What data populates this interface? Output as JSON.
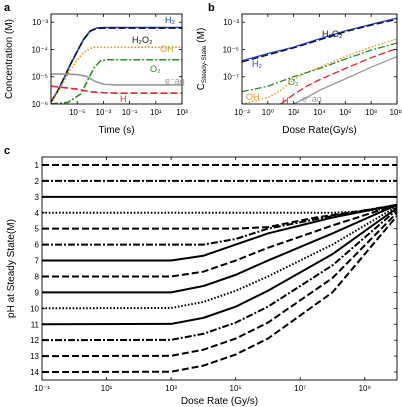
{
  "chart_data": [
    {
      "panel": "a",
      "type": "line",
      "xlabel": "Time (s)",
      "ylabel": "Concentration (M)",
      "xscale": "log",
      "yscale": "log",
      "xlim": [
        1e-07,
        1000
      ],
      "ylim": [
        1e-06,
        0.002
      ],
      "xticks": [
        1e-05,
        0.001,
        0.1,
        10,
        1000
      ],
      "xticklabels": [
        "10⁻⁵",
        "10⁻³",
        "10⁻¹",
        "10¹",
        "10³"
      ],
      "yticks": [
        1e-06,
        1e-05,
        0.0001,
        0.001
      ],
      "yticklabels": [
        "10⁻⁶",
        "10⁻⁵",
        "10⁻⁴",
        "10⁻³"
      ],
      "series": [
        {
          "name": "H₂",
          "color": "#1f3fd9",
          "dash": "solid",
          "x": [
            1e-07,
            3e-07,
            1e-06,
            3e-06,
            1e-05,
            3e-05,
            0.0001,
            0.0003,
            0.001,
            1000
          ],
          "y": [
            1.2e-06,
            2.8e-06,
            9e-06,
            2.8e-05,
            8.5e-05,
            0.00023,
            0.00048,
            0.00061,
            0.00064,
            0.00064
          ]
        },
        {
          "name": "H₂O₂",
          "color": "#111111",
          "dash": "dashed",
          "x": [
            1e-07,
            3e-07,
            1e-06,
            3e-06,
            1e-05,
            3e-05,
            0.0001,
            0.0003,
            0.001,
            1000
          ],
          "y": [
            1.2e-06,
            2.8e-06,
            9e-06,
            2.8e-05,
            8.5e-05,
            0.00023,
            0.00047,
            0.00059,
            0.00061,
            0.00061
          ]
        },
        {
          "name": "OH",
          "color": "#e39a1f",
          "dash": "dotted",
          "x": [
            1e-07,
            3e-07,
            1e-06,
            3e-06,
            1e-05,
            3e-05,
            0.0001,
            0.0002,
            1000
          ],
          "y": [
            1.1e-06,
            2.5e-06,
            7e-06,
            1.8e-05,
            4e-05,
            7.5e-05,
            0.00011,
            0.00012,
            0.00012
          ]
        },
        {
          "name": "O₂",
          "color": "#2e8b24",
          "dash": "dashdot",
          "x": [
            1e-07,
            2e-06,
            2e-05,
            6e-05,
            0.0002,
            0.0006,
            0.002,
            1000
          ],
          "y": [
            1e-06,
            1.15e-06,
            2.4e-06,
            7e-06,
            2.2e-05,
            3.8e-05,
            4.2e-05,
            4.2e-05
          ]
        },
        {
          "name": "e⁻aq",
          "color": "#999999",
          "dash": "solid",
          "x": [
            1e-07,
            1e-06,
            1e-05,
            5e-05,
            0.0002,
            0.001,
            0.01,
            1000
          ],
          "y": [
            1.25e-05,
            1.25e-05,
            1.2e-05,
            1.05e-05,
            7e-06,
            5.3e-06,
            5e-06,
            5e-06
          ]
        },
        {
          "name": "H",
          "color": "#e0242b",
          "dash": "dashed",
          "x": [
            1e-07,
            1e-06,
            1e-05,
            0.0001,
            0.001,
            0.01,
            1000
          ],
          "y": [
            4.5e-06,
            4e-06,
            3.5e-06,
            2.8e-06,
            2.6e-06,
            2.5e-06,
            2.5e-06
          ]
        }
      ]
    },
    {
      "panel": "b",
      "type": "line",
      "xlabel": "Dose Rate(Gy/s)",
      "ylabel": "C",
      "ylabel_sub": "Steady-State",
      "ylabel_unit": "(M)",
      "xscale": "log",
      "yscale": "log",
      "xlim": [
        0.01,
        10000000000.0
      ],
      "ylim": [
        1e-09,
        0.004
      ],
      "xticks": [
        0.01,
        1,
        100,
        10000.0,
        1000000.0,
        100000000.0,
        10000000000.0
      ],
      "xticklabels": [
        "10⁻²",
        "10⁰",
        "10²",
        "10⁴",
        "10⁶",
        "10⁸",
        "10¹⁰"
      ],
      "yticks": [
        1e-07,
        1e-05,
        0.001
      ],
      "yticklabels": [
        "10⁻⁷",
        "10⁻⁵",
        "10⁻³"
      ],
      "series": [
        {
          "name": "H₂",
          "color": "#1f3fd9",
          "dash": "solid",
          "x": [
            0.01,
            1,
            100,
            10000.0,
            1000000.0,
            100000000.0,
            10000000000.0
          ],
          "y": [
            1.5e-06,
            5e-06,
            1.5e-05,
            6e-05,
            0.00023,
            0.0007,
            0.002
          ]
        },
        {
          "name": "H₂O₂",
          "color": "#111111",
          "dash": "dashed",
          "x": [
            0.01,
            1,
            100,
            10000.0,
            1000000.0,
            100000000.0,
            10000000000.0
          ],
          "y": [
            1.2e-06,
            4e-06,
            1.3e-05,
            5e-05,
            0.0002,
            0.0006,
            0.0016
          ]
        },
        {
          "name": "OH",
          "color": "#e39a1f",
          "dash": "dotted",
          "x": [
            0.01,
            1,
            10,
            100,
            1000.0,
            10000.0,
            1000000.0,
            100000000.0,
            10000000000.0
          ],
          "y": [
            1e-09,
            3e-09,
            1e-08,
            6e-08,
            2e-07,
            5e-07,
            3e-06,
            1.5e-05,
            6e-05
          ]
        },
        {
          "name": "O₂",
          "color": "#2e8b24",
          "dash": "dashdot",
          "x": [
            0.01,
            1,
            100,
            1000.0,
            10000.0,
            1000000.0,
            100000000.0,
            10000000000.0
          ],
          "y": [
            8e-09,
            2e-08,
            1e-07,
            2e-07,
            4e-07,
            2e-06,
            9e-06,
            3e-05
          ]
        },
        {
          "name": "H",
          "color": "#e0242b",
          "dash": "dashed",
          "x": [
            10,
            100,
            1000.0,
            10000.0,
            1000000.0,
            100000000.0,
            10000000000.0
          ],
          "y": [
            1e-09,
            5e-09,
            2e-08,
            6e-08,
            4e-07,
            2.5e-06,
            1.2e-05
          ]
        },
        {
          "name": "e⁻aq",
          "color": "#999999",
          "dash": "solid",
          "x": [
            100,
            1000.0,
            10000.0,
            1000000.0,
            100000000.0,
            10000000000.0
          ],
          "y": [
            1e-09,
            3e-09,
            1e-08,
            7e-08,
            5e-07,
            3e-06
          ]
        }
      ]
    },
    {
      "panel": "c",
      "type": "line",
      "xlabel": "Dose Rate (Gy/s)",
      "ylabel": "pH at Steady State(M)",
      "xscale": "log",
      "xlim": [
        0.1,
        10000000000.0
      ],
      "ylim": [
        14.5,
        0.5
      ],
      "xticks": [
        0.1,
        10,
        1000,
        100000.0,
        10000000.0,
        1000000000.0
      ],
      "xticklabels": [
        "10⁻¹",
        "10¹",
        "10³",
        "10⁵",
        "10⁷",
        "10⁹"
      ],
      "yticks": [
        1,
        2,
        3,
        4,
        5,
        6,
        7,
        8,
        9,
        10,
        11,
        12,
        13,
        14
      ],
      "yticklabels": [
        "1",
        "2",
        "3",
        "4",
        "5",
        "6",
        "7",
        "8",
        "9",
        "10",
        "11",
        "12",
        "13",
        "14"
      ],
      "line_color": "#000000",
      "series": [
        {
          "ph0": 1,
          "dash": "dashed",
          "x": [
            0.1,
            10000000000.0
          ],
          "y": [
            1,
            1
          ]
        },
        {
          "ph0": 2,
          "dash": "dashdot",
          "x": [
            0.1,
            10000000000.0
          ],
          "y": [
            2,
            2
          ]
        },
        {
          "ph0": 3,
          "dash": "solid",
          "x": [
            0.1,
            10000000000.0
          ],
          "y": [
            3,
            3
          ]
        },
        {
          "ph0": 4,
          "dash": "dotted",
          "x": [
            0.1,
            100000000.0,
            1000000000.0,
            10000000000.0
          ],
          "y": [
            4,
            4,
            3.9,
            3.65
          ]
        },
        {
          "ph0": 5,
          "dash": "dashed",
          "x": [
            0.1,
            100000.0,
            1000000.0,
            30000000.0,
            10000000000.0
          ],
          "y": [
            5,
            5,
            4.9,
            4.3,
            3.55
          ]
        },
        {
          "ph0": 6,
          "dash": "dashdot",
          "x": [
            0.1,
            10000.0,
            100000.0,
            1000000.0,
            100000000.0,
            10000000000.0
          ],
          "y": [
            6,
            6,
            5.65,
            5,
            4.2,
            3.5
          ]
        },
        {
          "ph0": 7,
          "dash": "solid",
          "x": [
            0.1,
            1000.0,
            10000.0,
            100000.0,
            1000000.0,
            100000000.0,
            10000000000.0
          ],
          "y": [
            7,
            7,
            6.7,
            6,
            5.3,
            4.3,
            3.5
          ]
        },
        {
          "ph0": 8,
          "dash": "dashed",
          "x": [
            0.1,
            1000.0,
            10000.0,
            100000.0,
            1000000.0,
            100000000.0,
            10000000000.0
          ],
          "y": [
            8,
            8,
            7.7,
            7,
            6.2,
            4.8,
            3.5
          ]
        },
        {
          "ph0": 9,
          "dash": "solid",
          "x": [
            0.1,
            1000.0,
            10000.0,
            100000.0,
            1000000.0,
            100000000.0,
            10000000000.0
          ],
          "y": [
            9,
            9,
            8.6,
            7.9,
            7,
            5.3,
            3.5
          ]
        },
        {
          "ph0": 10,
          "dash": "dotted",
          "x": [
            0.1,
            1000.0,
            10000.0,
            100000.0,
            1000000.0,
            100000000.0,
            10000000000.0
          ],
          "y": [
            10,
            9.98,
            9.6,
            8.9,
            8,
            6,
            3.6
          ]
        },
        {
          "ph0": 11,
          "dash": "solid",
          "x": [
            0.1,
            1000.0,
            10000.0,
            100000.0,
            1000000.0,
            100000000.0,
            10000000000.0
          ],
          "y": [
            11,
            10.98,
            10.6,
            9.9,
            8.9,
            6.6,
            3.7
          ]
        },
        {
          "ph0": 12,
          "dash": "dashdot",
          "x": [
            0.1,
            1000.0,
            10000.0,
            100000.0,
            1000000.0,
            100000000.0,
            10000000000.0
          ],
          "y": [
            12,
            11.98,
            11.6,
            10.9,
            9.9,
            7.3,
            3.8
          ]
        },
        {
          "ph0": 13,
          "dash": "dashed",
          "x": [
            0.1,
            1000.0,
            10000.0,
            100000.0,
            1000000.0,
            100000000.0,
            10000000000.0
          ],
          "y": [
            13,
            12.98,
            12.6,
            11.9,
            10.9,
            8.1,
            4
          ]
        },
        {
          "ph0": 14,
          "dash": "dashed",
          "x": [
            0.1,
            1000.0,
            10000.0,
            100000.0,
            1000000.0,
            100000000.0,
            10000000000.0
          ],
          "y": [
            14,
            13.98,
            13.6,
            12.9,
            11.9,
            9,
            4.2
          ]
        }
      ]
    }
  ]
}
